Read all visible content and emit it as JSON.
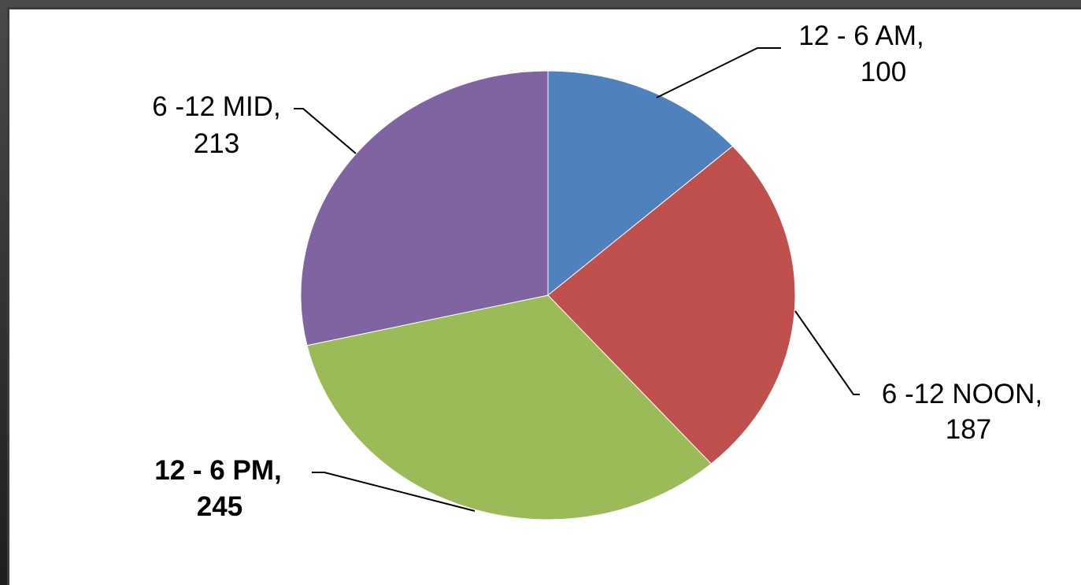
{
  "chart_data": {
    "type": "pie",
    "categories": [
      "12 - 6 AM",
      "6 -12 NOON",
      "12 - 6 PM",
      "6 -12 MID"
    ],
    "values": [
      100,
      187,
      245,
      213
    ],
    "colors": [
      "#4F81BD",
      "#C0504D",
      "#9BBB59",
      "#8064A2"
    ],
    "data_labels": [
      {
        "line1": "12 - 6 AM,",
        "line2": "100"
      },
      {
        "line1": "6 -12 NOON,",
        "line2": "187"
      },
      {
        "line1": "12 - 6 PM,",
        "line2": "245"
      },
      {
        "line1": "6 -12 MID,",
        "line2": "213"
      }
    ],
    "highlight_label_color": "#FF0000",
    "highlight_index": 2
  }
}
